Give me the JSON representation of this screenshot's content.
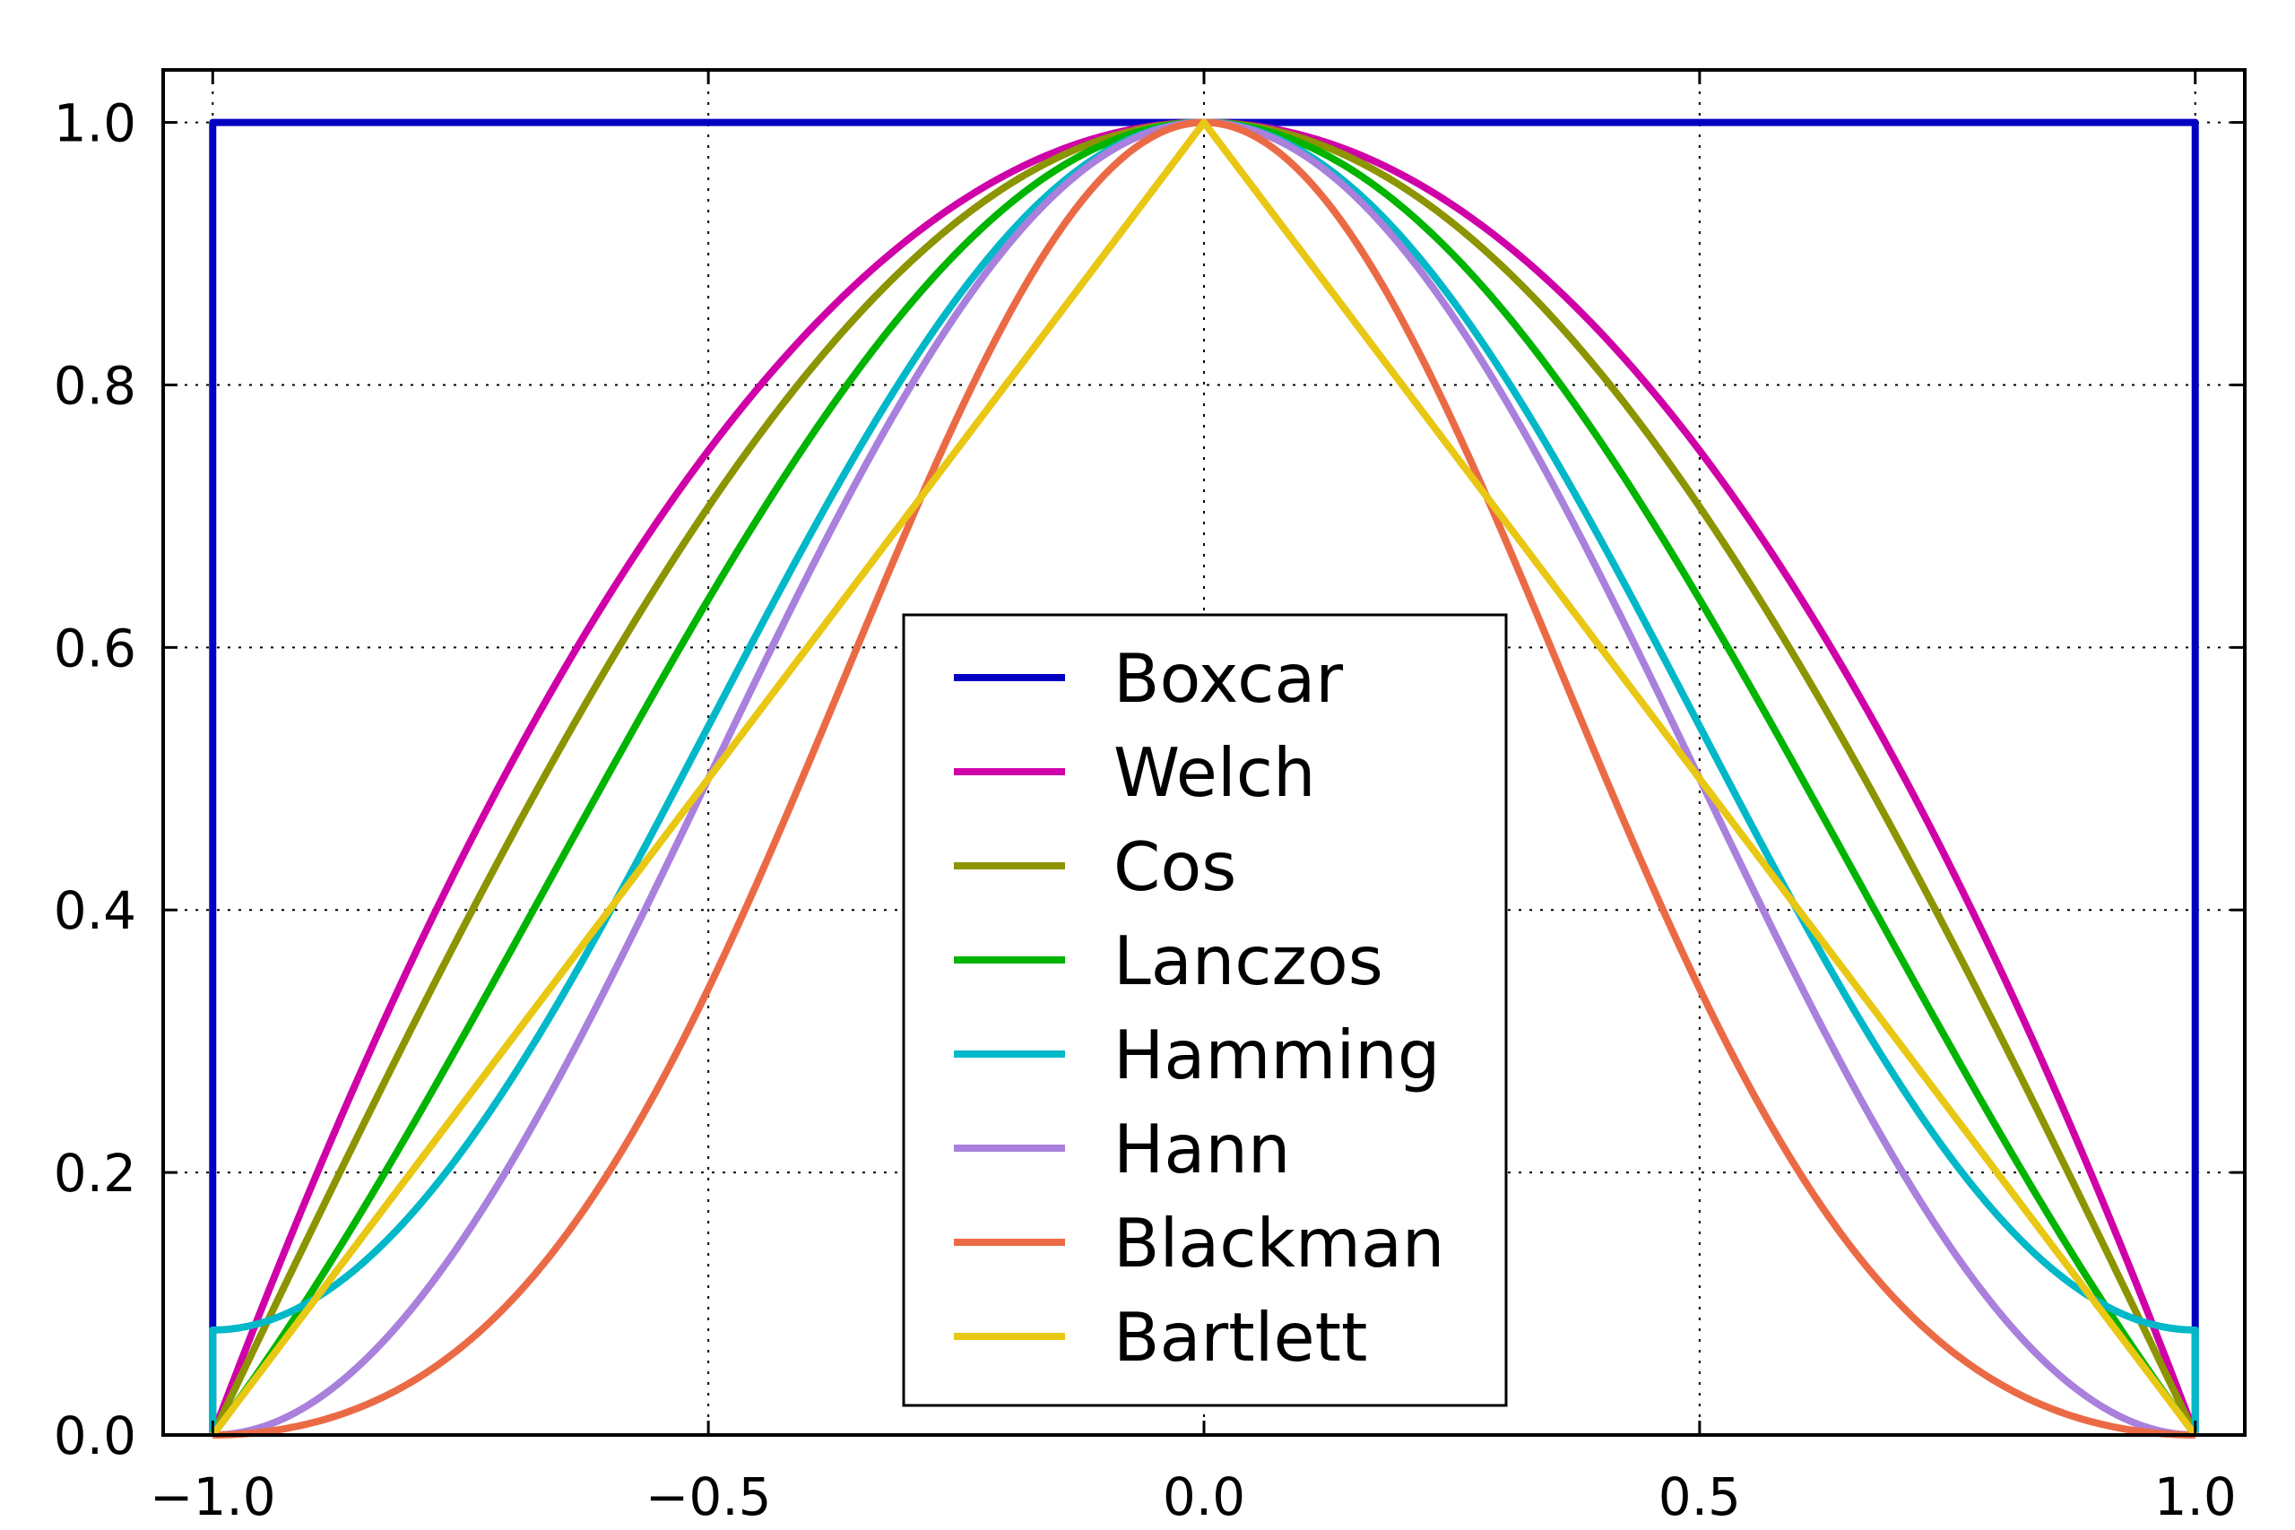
{
  "chart_data": {
    "type": "line",
    "title": "",
    "xlabel": "",
    "ylabel": "",
    "xlim": [
      -1.05,
      1.05
    ],
    "ylim": [
      0.0,
      1.04
    ],
    "grid": true,
    "legend_position": "lower-center",
    "x_ticks": [
      -1.0,
      -0.5,
      0.0,
      0.5,
      1.0
    ],
    "x_tick_labels": [
      "−1.0",
      "−0.5",
      "0.0",
      "0.5",
      "1.0"
    ],
    "y_ticks": [
      0.0,
      0.2,
      0.4,
      0.6,
      0.8,
      1.0
    ],
    "y_tick_labels": [
      "0.0",
      "0.2",
      "0.4",
      "0.6",
      "0.8",
      "1.0"
    ],
    "x_domain": [
      -1.0,
      1.0
    ],
    "sample_count": 401,
    "series": [
      {
        "name": "Boxcar",
        "window": "boxcar",
        "color": "#0000c0"
      },
      {
        "name": "Welch",
        "window": "welch",
        "color": "#d000a8"
      },
      {
        "name": "Cos",
        "window": "cosine",
        "color": "#8c9400"
      },
      {
        "name": "Lanczos",
        "window": "lanczos",
        "color": "#00b400"
      },
      {
        "name": "Hamming",
        "window": "hamming",
        "color": "#00b8c8"
      },
      {
        "name": "Hann",
        "window": "hann",
        "color": "#a980dc"
      },
      {
        "name": "Blackman",
        "window": "blackman",
        "color": "#eb6a46"
      },
      {
        "name": "Bartlett",
        "window": "bartlett",
        "color": "#e8c814"
      }
    ]
  }
}
